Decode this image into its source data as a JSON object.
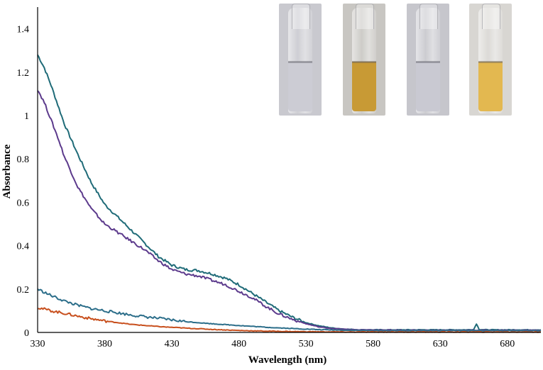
{
  "chart_data": {
    "type": "line",
    "xlabel": "Wavelength (nm)",
    "ylabel": "Absorbance",
    "xlim": [
      330,
      705
    ],
    "ylim": [
      0,
      1.5
    ],
    "x_ticks": [
      "330",
      "380",
      "430",
      "480",
      "530",
      "580",
      "630",
      "680"
    ],
    "y_ticks": [
      "0",
      "0.2",
      "0.4",
      "0.6",
      "0.8",
      "1",
      "1.2",
      "1.4"
    ],
    "grid": false,
    "series": [
      {
        "color": "#1f6b78",
        "x": [
          330,
          335,
          340,
          345,
          350,
          360,
          370,
          380,
          390,
          400,
          410,
          420,
          430,
          440,
          450,
          460,
          470,
          480,
          490,
          500,
          510,
          520,
          530,
          540,
          550,
          560,
          570,
          580,
          600,
          620,
          640,
          650,
          655,
          657,
          659,
          665,
          680,
          705
        ],
        "y": [
          1.28,
          1.22,
          1.14,
          1.05,
          0.96,
          0.82,
          0.69,
          0.59,
          0.53,
          0.47,
          0.41,
          0.35,
          0.31,
          0.29,
          0.285,
          0.27,
          0.25,
          0.22,
          0.18,
          0.14,
          0.1,
          0.07,
          0.045,
          0.03,
          0.02,
          0.015,
          0.012,
          0.012,
          0.012,
          0.012,
          0.012,
          0.012,
          0.014,
          0.04,
          0.014,
          0.012,
          0.012,
          0.012
        ]
      },
      {
        "color": "#5c3a8c",
        "x": [
          330,
          335,
          340,
          345,
          350,
          360,
          370,
          380,
          390,
          400,
          410,
          420,
          430,
          440,
          450,
          460,
          470,
          480,
          490,
          500,
          510,
          520,
          530,
          540,
          550,
          560,
          570,
          580,
          600,
          620,
          640,
          660,
          680,
          705
        ],
        "y": [
          1.12,
          1.06,
          0.98,
          0.9,
          0.81,
          0.67,
          0.57,
          0.5,
          0.46,
          0.42,
          0.38,
          0.33,
          0.29,
          0.27,
          0.26,
          0.24,
          0.22,
          0.19,
          0.16,
          0.12,
          0.085,
          0.06,
          0.04,
          0.025,
          0.018,
          0.014,
          0.012,
          0.011,
          0.01,
          0.01,
          0.01,
          0.01,
          0.01,
          0.01
        ]
      },
      {
        "color": "#2c6e8a",
        "x": [
          330,
          340,
          350,
          360,
          370,
          380,
          390,
          400,
          420,
          440,
          460,
          480,
          500,
          520,
          540,
          560,
          580,
          600,
          640,
          680,
          705
        ],
        "y": [
          0.2,
          0.17,
          0.145,
          0.125,
          0.11,
          0.1,
          0.09,
          0.08,
          0.065,
          0.05,
          0.04,
          0.032,
          0.024,
          0.018,
          0.013,
          0.01,
          0.008,
          0.008,
          0.008,
          0.008,
          0.008
        ]
      },
      {
        "color": "#c8501e",
        "x": [
          330,
          340,
          350,
          360,
          370,
          380,
          390,
          400,
          420,
          440,
          460,
          480,
          500,
          520,
          540,
          560,
          580,
          600,
          640,
          680,
          705
        ],
        "y": [
          0.115,
          0.1,
          0.088,
          0.075,
          0.063,
          0.053,
          0.045,
          0.037,
          0.027,
          0.02,
          0.014,
          0.009,
          0.006,
          0.004,
          0.003,
          0.002,
          0.002,
          0.002,
          0.002,
          0.002,
          0.002
        ]
      }
    ]
  },
  "inset_photos": [
    {
      "liquid_color": "#ccccd4",
      "background": "#c9c9cf"
    },
    {
      "liquid_color": "#c89a35",
      "background": "#c8c6c2"
    },
    {
      "liquid_color": "#c9c9d2",
      "background": "#c6c6cc"
    },
    {
      "liquid_color": "#e3b850",
      "background": "#d8d6d2"
    }
  ]
}
